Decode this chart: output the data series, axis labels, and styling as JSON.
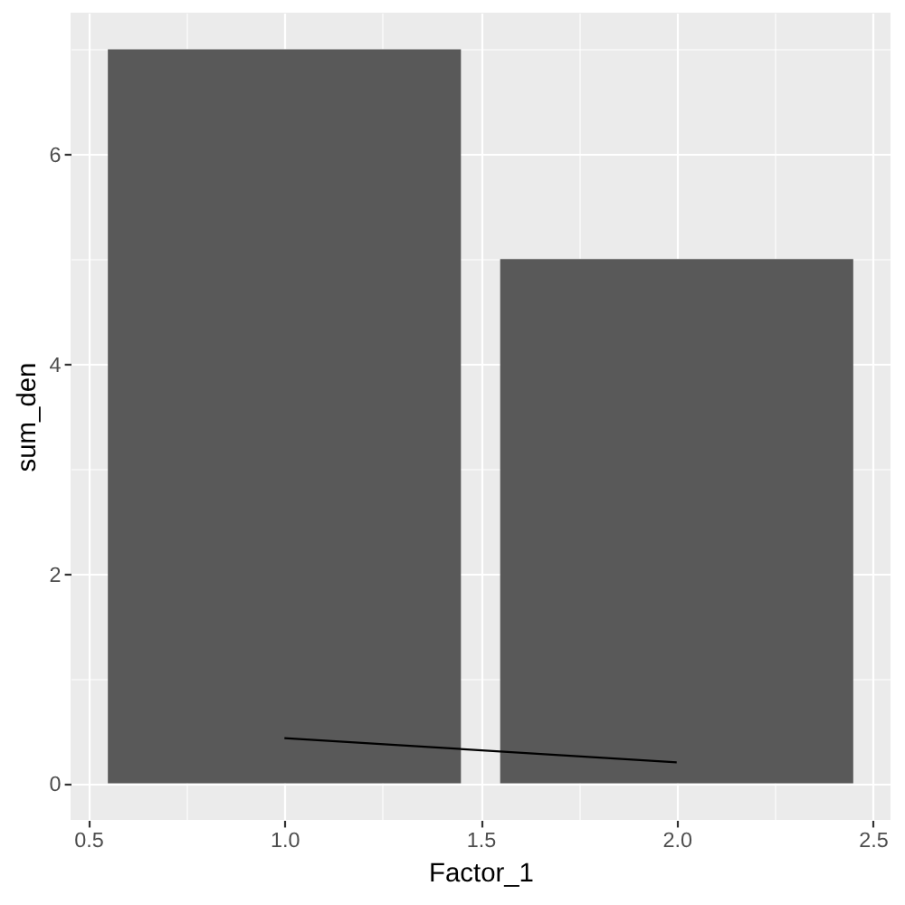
{
  "chart_data": {
    "type": "bar",
    "xlabel": "Factor_1",
    "ylabel": "sum_den",
    "x": [
      1,
      2
    ],
    "series": [
      {
        "color": "#595959",
        "values": [
          7,
          5
        ]
      },
      {
        "type": "line",
        "color": "#000000",
        "x": [
          1,
          2
        ],
        "values": [
          0.43,
          0.2
        ]
      }
    ],
    "xlim": [
      0.455,
      2.545
    ],
    "ylim": [
      -0.35,
      7.35
    ],
    "xticks": [
      0.5,
      {
        "value": 0.75,
        "label": null
      },
      {
        "value": 1,
        "label": "1.0"
      },
      {
        "value": 1.25,
        "label": null
      },
      1.5,
      {
        "value": 1.75,
        "label": null
      },
      {
        "value": 2,
        "label": "2.0"
      },
      {
        "value": 2.25,
        "label": null
      },
      2.5
    ],
    "yticks": [
      0,
      {
        "value": 1,
        "label": null
      },
      2,
      {
        "value": 3,
        "label": null
      },
      4,
      {
        "value": 5,
        "label": null
      },
      6,
      {
        "value": 7,
        "label": null
      }
    ],
    "grid": true
  }
}
